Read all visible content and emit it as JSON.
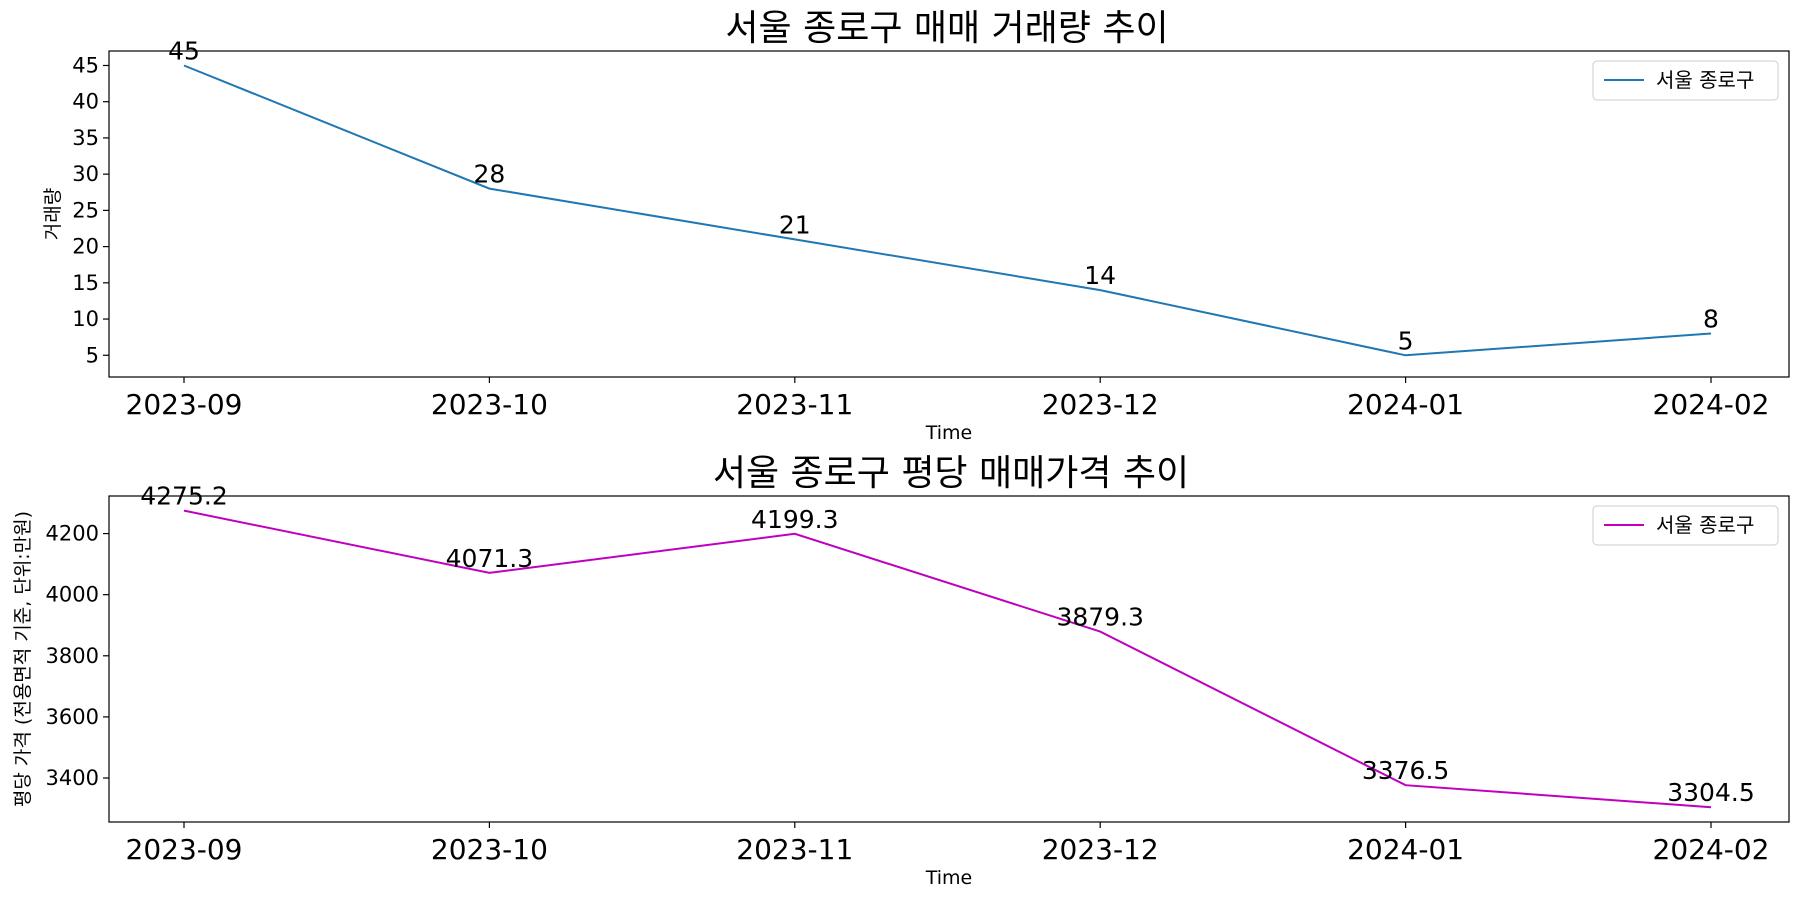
{
  "chart_data": [
    {
      "type": "line",
      "title": "서울 종로구 매매 거래량 추이",
      "xlabel": "Time",
      "ylabel": "거래량",
      "categories": [
        "2023-09",
        "2023-10",
        "2023-11",
        "2023-12",
        "2024-01",
        "2024-02"
      ],
      "series": [
        {
          "name": "서울 종로구",
          "color": "#1f77b4",
          "values": [
            45,
            28,
            21,
            14,
            5,
            8
          ],
          "labels": [
            "45",
            "28",
            "21",
            "14",
            "5",
            "8"
          ]
        }
      ],
      "ylim": [
        2.0,
        47.0
      ],
      "yticks": [
        5,
        10,
        15,
        20,
        25,
        30,
        35,
        40,
        45
      ],
      "ytick_labels": [
        "5",
        "10",
        "15",
        "20",
        "25",
        "30",
        "35",
        "40",
        "45"
      ],
      "grid": false,
      "legend_position": "top-right"
    },
    {
      "type": "line",
      "title": "서울 종로구 평당 매매가격 추이",
      "xlabel": "Time",
      "ylabel": "평당 가격 (전용면적 기준, 단위:만원)",
      "categories": [
        "2023-09",
        "2023-10",
        "2023-11",
        "2023-12",
        "2024-01",
        "2024-02"
      ],
      "series": [
        {
          "name": "서울 종로구",
          "color": "#bf00bf",
          "values": [
            4275.2,
            4071.3,
            4199.3,
            3879.3,
            3376.5,
            3304.5
          ],
          "labels": [
            "4275.2",
            "4071.3",
            "4199.3",
            "3879.3",
            "3376.5",
            "3304.5"
          ]
        }
      ],
      "ylim": [
        3256.0,
        4323.0
      ],
      "yticks": [
        3400,
        3600,
        3800,
        4000,
        4200
      ],
      "ytick_labels": [
        "3400",
        "3600",
        "3800",
        "4000",
        "4200"
      ],
      "grid": false,
      "legend_position": "top-right"
    }
  ]
}
